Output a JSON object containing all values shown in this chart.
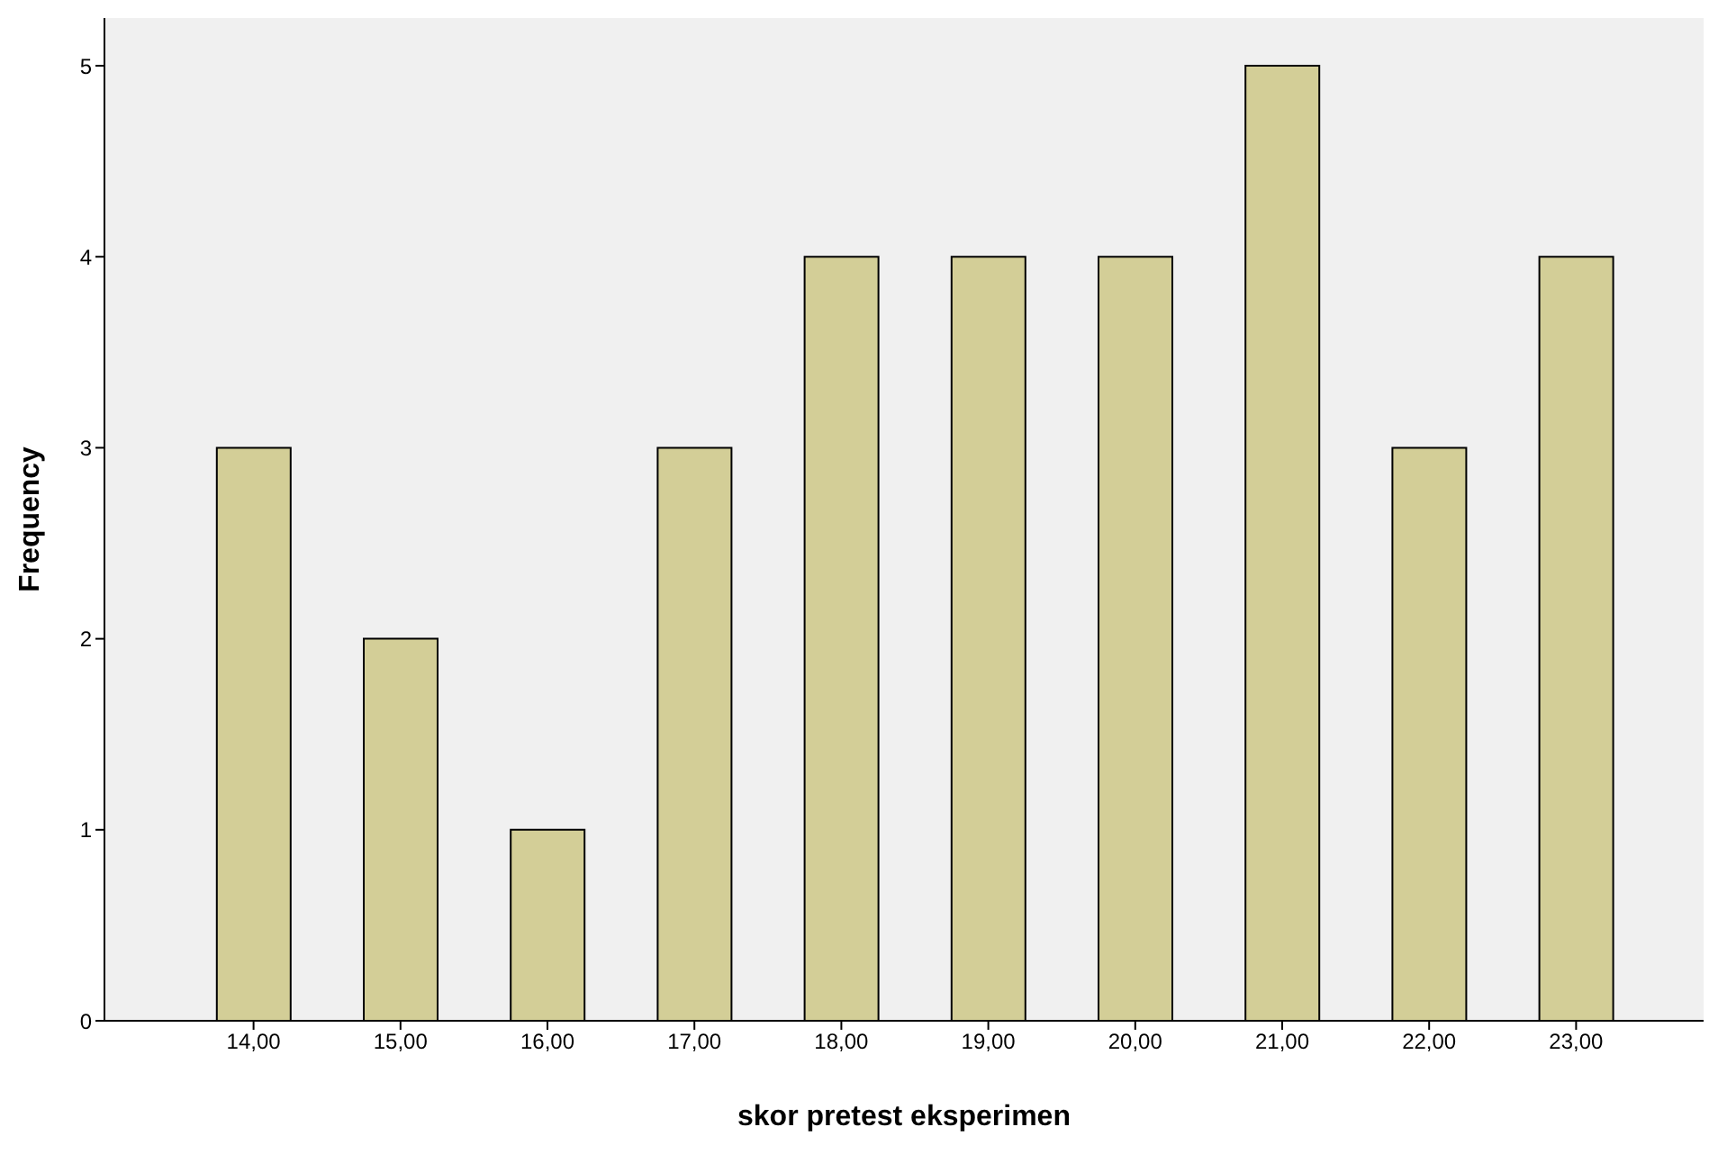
{
  "chart_data": {
    "type": "bar",
    "xlabel": "skor pretest eksperimen",
    "ylabel": "Frequency",
    "categories": [
      "14,00",
      "15,00",
      "16,00",
      "17,00",
      "18,00",
      "19,00",
      "20,00",
      "21,00",
      "22,00",
      "23,00"
    ],
    "values": [
      3,
      2,
      1,
      3,
      4,
      4,
      4,
      5,
      3,
      4
    ],
    "color": "#d3ce97",
    "ylim": [
      0,
      5.25
    ],
    "yticks": [
      0,
      1,
      2,
      3,
      4,
      5
    ],
    "grid": false
  }
}
